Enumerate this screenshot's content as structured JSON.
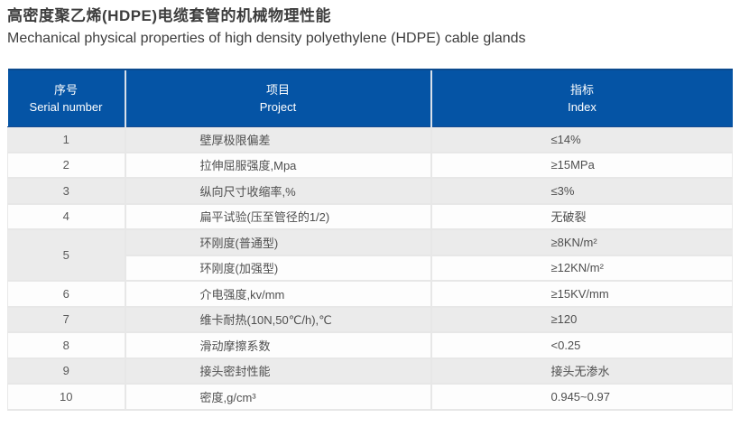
{
  "titles": {
    "zh": "高密度聚乙烯(HDPE)电缆套管的机械物理性能",
    "en": "Mechanical physical properties of high density polyethylene (HDPE) cable glands"
  },
  "table": {
    "header": [
      {
        "zh": "序号",
        "en": "Serial number"
      },
      {
        "zh": "项目",
        "en": "Project"
      },
      {
        "zh": "指标",
        "en": "Index"
      }
    ],
    "rows": [
      {
        "serial": "1",
        "rowspan": 1,
        "project": "壁厚极限偏差",
        "index": "≤14%"
      },
      {
        "serial": "2",
        "rowspan": 1,
        "project": "拉伸屈服强度,Mpa",
        "index": "≥15MPa"
      },
      {
        "serial": "3",
        "rowspan": 1,
        "project": "纵向尺寸收缩率,%",
        "index": "≤3%"
      },
      {
        "serial": "4",
        "rowspan": 1,
        "project": "扁平试验(压至管径的1/2)",
        "index": "无破裂"
      },
      {
        "serial": "5",
        "rowspan": 2,
        "project": "环刚度(普通型)",
        "index": "≥8KN/m²"
      },
      {
        "serial": null,
        "project": "环刚度(加强型)",
        "index": "≥12KN/m²"
      },
      {
        "serial": "6",
        "rowspan": 1,
        "project": "介电强度,kv/mm",
        "index": "≥15KV/mm"
      },
      {
        "serial": "7",
        "rowspan": 1,
        "project": "维卡耐热(10N,50℃/h),℃",
        "index": "≥120"
      },
      {
        "serial": "8",
        "rowspan": 1,
        "project": "滑动摩擦系数",
        "index": "<0.25"
      },
      {
        "serial": "9",
        "rowspan": 1,
        "project": "接头密封性能",
        "index": "接头无渗水"
      },
      {
        "serial": "10",
        "rowspan": 1,
        "project": "密度,g/cm³",
        "index": "0.945~0.97"
      }
    ],
    "colors": {
      "header_bg": "#0554a5",
      "header_text": "#ffffff",
      "row_gray": "#ebebeb",
      "row_white": "#fdfdfd",
      "body_text": "#4f4f4f"
    }
  }
}
